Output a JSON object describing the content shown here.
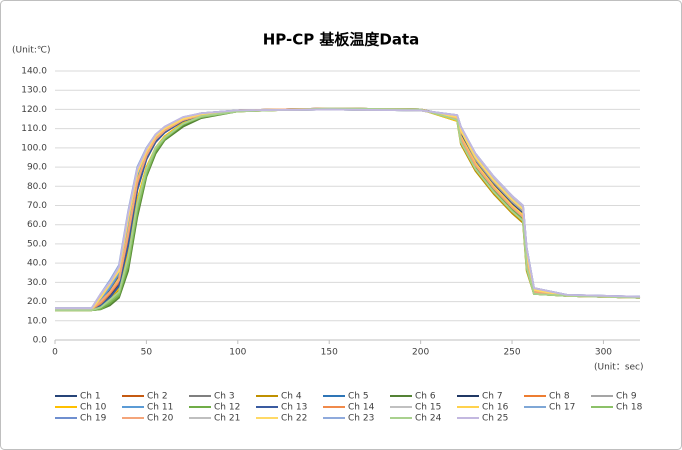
{
  "chart_data": {
    "type": "line",
    "title": "HP-CP 基板温度Data",
    "y_unit": "(Unit:℃)",
    "x_unit": "(Unit：sec)",
    "x": [
      0,
      20,
      25,
      30,
      35,
      40,
      45,
      50,
      55,
      60,
      70,
      80,
      100,
      150,
      200,
      220,
      222,
      230,
      240,
      250,
      256,
      258,
      262,
      280,
      320
    ],
    "xlim": [
      0,
      320
    ],
    "xticks": [
      0,
      50,
      100,
      150,
      200,
      250,
      300
    ],
    "ylim": [
      0,
      140
    ],
    "yticks": [
      {
        "value": 0,
        "label": "0.0"
      },
      {
        "value": 10,
        "label": "10.0"
      },
      {
        "value": 20,
        "label": "20.0"
      },
      {
        "value": 30,
        "label": "30.0"
      },
      {
        "value": 40,
        "label": "40.0"
      },
      {
        "value": 50,
        "label": "50.0"
      },
      {
        "value": 60,
        "label": "60.0"
      },
      {
        "value": 70,
        "label": "70.0"
      },
      {
        "value": 80,
        "label": "80.0"
      },
      {
        "value": 90,
        "label": "90.0"
      },
      {
        "value": 100,
        "label": "100.0"
      },
      {
        "value": 110,
        "label": "110.0"
      },
      {
        "value": 120,
        "label": "120.0"
      },
      {
        "value": 130,
        "label": "130.0"
      },
      {
        "value": 140,
        "label": "140.0"
      }
    ],
    "grid": true,
    "series": [
      {
        "name": "Ch 1",
        "color": "#264478",
        "values": [
          16,
          16,
          20,
          26,
          33,
          58,
          84,
          97,
          105,
          109.5,
          114.5,
          117.5,
          119.5,
          120.5,
          120,
          116,
          108,
          93,
          81,
          71,
          66,
          42,
          25,
          23,
          22
        ]
      },
      {
        "name": "Ch 2",
        "color": "#c55a11",
        "values": [
          16,
          16,
          17,
          21,
          27,
          48,
          78,
          94,
          103,
          108,
          114,
          117,
          119.5,
          120.5,
          120,
          115,
          104,
          90,
          78,
          68,
          63,
          38,
          25,
          23,
          22
        ]
      },
      {
        "name": "Ch 3",
        "color": "#7f7f7f",
        "values": [
          16,
          16,
          21,
          27,
          34,
          60,
          85,
          97,
          105,
          110,
          115,
          117.5,
          119.5,
          120,
          119.5,
          116,
          109,
          94,
          82,
          72,
          67,
          44,
          26,
          23,
          22
        ]
      },
      {
        "name": "Ch 4",
        "color": "#bf9000",
        "values": [
          15.5,
          15.5,
          17,
          21,
          26,
          42,
          70,
          89,
          100,
          106,
          113,
          116.5,
          119,
          120.5,
          120,
          114,
          102,
          88,
          76,
          66,
          61,
          36,
          24,
          23,
          22
        ]
      },
      {
        "name": "Ch 5",
        "color": "#2e75b6",
        "values": [
          16,
          16,
          22,
          28,
          36,
          63,
          87,
          98,
          106,
          110,
          115,
          117.5,
          119.5,
          120,
          119.5,
          116.5,
          110,
          95,
          83,
          73,
          68,
          46,
          26,
          23,
          22.5
        ]
      },
      {
        "name": "Ch 6",
        "color": "#548235",
        "values": [
          15.5,
          15.5,
          16,
          18,
          22,
          36,
          64,
          85,
          97,
          104,
          111,
          115.5,
          119,
          120.5,
          120,
          115,
          104,
          90,
          78,
          68,
          63,
          38,
          24,
          23,
          22
        ]
      },
      {
        "name": "Ch 7",
        "color": "#203864",
        "values": [
          16,
          16,
          18,
          23,
          29,
          50,
          79,
          95,
          104,
          108.5,
          114,
          117,
          119.5,
          120.5,
          120,
          115,
          105,
          91,
          79,
          69,
          64,
          40,
          25,
          23,
          22
        ]
      },
      {
        "name": "Ch 8",
        "color": "#ed7d31",
        "values": [
          16,
          16,
          19,
          24,
          30,
          53,
          81,
          95,
          104,
          108.5,
          114,
          117,
          119.5,
          120.5,
          120,
          114.5,
          104,
          89,
          77,
          67,
          62,
          38,
          24,
          23,
          22
        ]
      },
      {
        "name": "Ch 9",
        "color": "#a5a5a5",
        "values": [
          16.5,
          16.5,
          23,
          29,
          37,
          64,
          88,
          99,
          106.5,
          110.5,
          115.5,
          118,
          119.5,
          120,
          119.5,
          116,
          109,
          94,
          82,
          72,
          67,
          44,
          26,
          23,
          22.5
        ]
      },
      {
        "name": "Ch 10",
        "color": "#ffc000",
        "values": [
          15.5,
          15.5,
          18,
          22,
          27,
          45,
          73,
          90,
          100,
          106,
          113,
          116.5,
          119,
          120.5,
          120,
          114,
          103,
          89,
          77,
          67,
          62,
          37,
          24,
          23,
          22
        ]
      },
      {
        "name": "Ch 11",
        "color": "#5b9bd5",
        "values": [
          16,
          16,
          21,
          27,
          35,
          61,
          86,
          97,
          105,
          110,
          115,
          117.5,
          119.5,
          120,
          119.5,
          116.5,
          110,
          96,
          84,
          74,
          69,
          46,
          26,
          23,
          22.5
        ]
      },
      {
        "name": "Ch 12",
        "color": "#70ad47",
        "values": [
          15.5,
          15.5,
          16,
          19,
          23,
          38,
          66,
          86,
          98,
          104.5,
          112,
          116,
          119,
          120.5,
          120,
          115,
          104,
          90,
          78,
          68,
          63,
          39,
          24,
          23,
          22
        ]
      },
      {
        "name": "Ch 13",
        "color": "#3a5ba0",
        "values": [
          16,
          16,
          18,
          22,
          28,
          49,
          78,
          94,
          103,
          108,
          114,
          117,
          119.5,
          120.5,
          120,
          115,
          105,
          91,
          79,
          69,
          64,
          41,
          25,
          23,
          22
        ]
      },
      {
        "name": "Ch 14",
        "color": "#f08a4b",
        "values": [
          16,
          16,
          19,
          24,
          31,
          54,
          82,
          96,
          104.5,
          109,
          114.5,
          117,
          119.5,
          120.5,
          120,
          115,
          106,
          92,
          80,
          70,
          65,
          42,
          25,
          23,
          22
        ]
      },
      {
        "name": "Ch 15",
        "color": "#c0c0c0",
        "values": [
          16.5,
          16.5,
          24,
          30,
          38,
          66,
          89,
          99,
          106.5,
          110.5,
          115.5,
          118,
          119.5,
          120,
          119.5,
          117,
          111,
          97,
          85,
          75,
          70,
          48,
          27,
          23.5,
          22.5
        ]
      },
      {
        "name": "Ch 16",
        "color": "#ffd24d",
        "values": [
          16,
          16,
          20,
          25,
          32,
          56,
          83,
          96,
          104.5,
          109,
          114.5,
          117,
          119.5,
          120.5,
          120,
          115.5,
          106,
          92,
          80,
          70,
          65,
          42,
          25,
          23,
          22
        ]
      },
      {
        "name": "Ch 17",
        "color": "#7fa7d6",
        "values": [
          16,
          16,
          22,
          28,
          36,
          62,
          87,
          98,
          106,
          110,
          115,
          117.5,
          119.5,
          120,
          119.5,
          117,
          111,
          97,
          85,
          75,
          70,
          48,
          27,
          23.5,
          22.5
        ]
      },
      {
        "name": "Ch 18",
        "color": "#8cc168",
        "values": [
          15.5,
          15.5,
          17,
          20,
          24,
          40,
          68,
          87,
          99,
          105,
          112.5,
          116,
          119,
          120.5,
          120,
          114.5,
          103,
          89,
          77,
          67,
          62,
          37,
          24,
          23,
          22
        ]
      },
      {
        "name": "Ch 19",
        "color": "#6f8fcf",
        "values": [
          16.5,
          16.5,
          23,
          30,
          38,
          65,
          88,
          99,
          106.5,
          110.5,
          115.5,
          118,
          119.5,
          120,
          119.5,
          116.5,
          110,
          96,
          84,
          74,
          69,
          47,
          27,
          23.5,
          22.5
        ]
      },
      {
        "name": "Ch 20",
        "color": "#f4a57a",
        "values": [
          16,
          16,
          20,
          25,
          31,
          55,
          82,
          96,
          104.5,
          109,
          114.5,
          117,
          119.5,
          120.5,
          120,
          115,
          105,
          91,
          79,
          69,
          64,
          40,
          25,
          23,
          22
        ]
      },
      {
        "name": "Ch 21",
        "color": "#bfbfbf",
        "values": [
          16.5,
          16.5,
          23,
          29,
          37,
          64,
          88,
          98.5,
          106,
          110.5,
          115.5,
          118,
          119.5,
          120,
          119.5,
          116.5,
          110,
          96,
          84,
          74,
          69,
          47,
          27,
          23.5,
          22.5
        ]
      },
      {
        "name": "Ch 22",
        "color": "#ffd966",
        "values": [
          16,
          16,
          22,
          29,
          36,
          63,
          87,
          98,
          106,
          110,
          115,
          117.5,
          119.5,
          120,
          119.5,
          116,
          109,
          95,
          83,
          73,
          68,
          45,
          26,
          23,
          22
        ]
      },
      {
        "name": "Ch 23",
        "color": "#8faadc",
        "values": [
          16.5,
          16.5,
          24,
          31,
          39,
          67,
          90,
          100,
          107,
          111,
          116,
          118,
          119.5,
          120,
          119.5,
          117,
          111,
          97,
          85,
          75,
          70,
          48,
          27,
          23.5,
          22.5
        ]
      },
      {
        "name": "Ch 24",
        "color": "#a9d18e",
        "values": [
          15.5,
          15.5,
          17,
          21,
          25,
          43,
          71,
          89,
          100,
          105.5,
          112.5,
          116.5,
          119,
          120.5,
          120,
          114.5,
          103,
          89,
          77,
          67,
          62,
          38,
          24,
          23,
          22
        ]
      },
      {
        "name": "Ch 25",
        "color": "#c3b8e0",
        "values": [
          16.5,
          16.5,
          24,
          30,
          38,
          66,
          89,
          99.5,
          107,
          111,
          116,
          118,
          119.5,
          120,
          119.5,
          117,
          111,
          97,
          85,
          75,
          70,
          48,
          27,
          23.5,
          22.5
        ]
      }
    ]
  }
}
